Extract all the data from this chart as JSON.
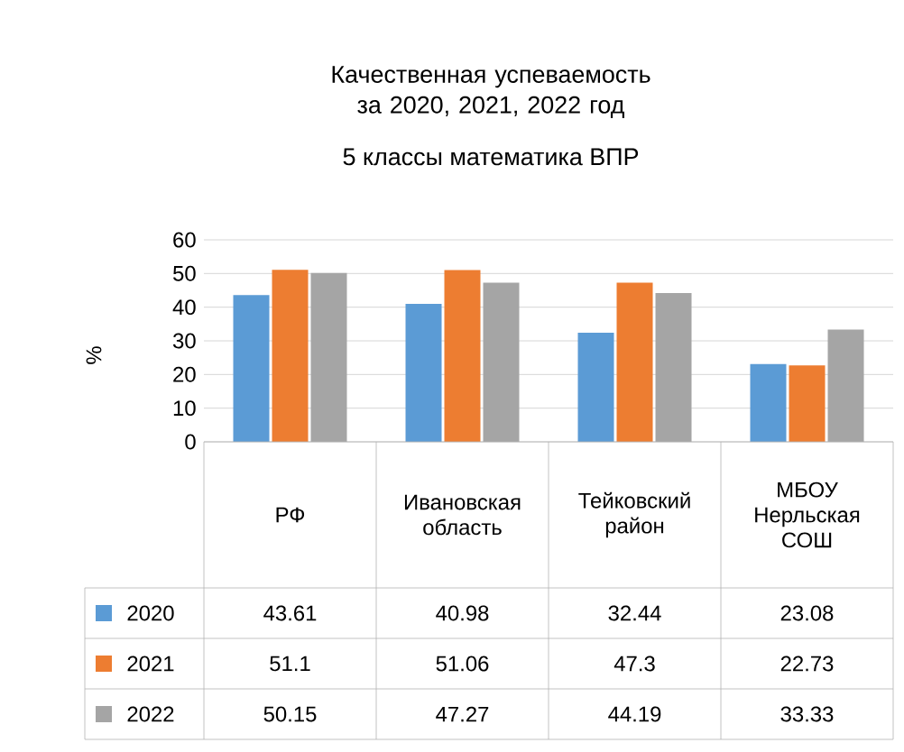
{
  "chart_data": {
    "type": "bar",
    "title": "Качественная успеваемость за 2020, 2021, 2022 год",
    "subtitle": "5 классы математика ВПР",
    "ylabel": "%",
    "categories": [
      "РФ",
      "Ивановская область",
      "Тейковский район",
      "МБОУ Нерльская СОШ"
    ],
    "series": [
      {
        "name": "2020",
        "color": "#5b9bd5",
        "values": [
          43.61,
          40.98,
          32.44,
          23.08
        ]
      },
      {
        "name": "2021",
        "color": "#ed7d31",
        "values": [
          51.1,
          51.06,
          47.3,
          22.73
        ]
      },
      {
        "name": "2022",
        "color": "#a5a5a5",
        "values": [
          50.15,
          47.27,
          44.19,
          33.33
        ]
      }
    ],
    "ylim": [
      0,
      60
    ],
    "yticks": [
      0,
      10,
      20,
      30,
      40,
      50,
      60
    ],
    "grid": "y",
    "legend": "bottom",
    "data_labels": true
  }
}
